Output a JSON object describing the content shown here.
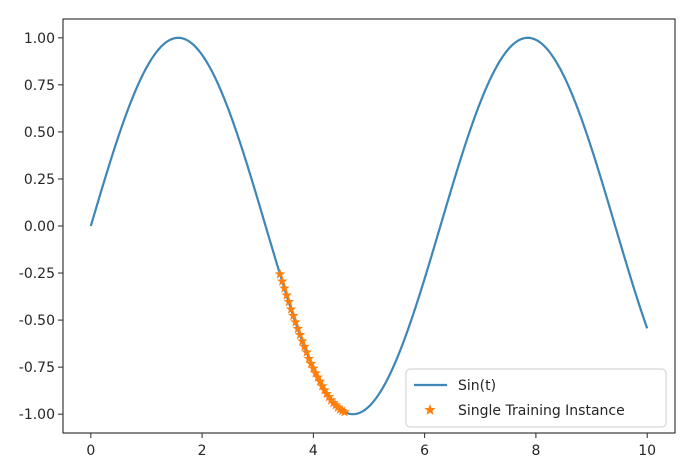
{
  "chart_data": {
    "type": "line",
    "title": "",
    "xlabel": "",
    "ylabel": "",
    "xlim": [
      -0.5,
      10.5
    ],
    "ylim": [
      -1.1,
      1.1
    ],
    "xticks": [
      {
        "value": 0,
        "label": "0"
      },
      {
        "value": 2,
        "label": "2"
      },
      {
        "value": 4,
        "label": "4"
      },
      {
        "value": 6,
        "label": "6"
      },
      {
        "value": 8,
        "label": "8"
      },
      {
        "value": 10,
        "label": "10"
      }
    ],
    "yticks": [
      {
        "value": 1.0,
        "label": "1.00"
      },
      {
        "value": 0.75,
        "label": "0.75"
      },
      {
        "value": 0.5,
        "label": "0.50"
      },
      {
        "value": 0.25,
        "label": "0.25"
      },
      {
        "value": 0.0,
        "label": "0.00"
      },
      {
        "value": -0.25,
        "label": "-0.25"
      },
      {
        "value": -0.5,
        "label": "-0.50"
      },
      {
        "value": -0.75,
        "label": "-0.75"
      },
      {
        "value": -1.0,
        "label": "-1.00"
      }
    ],
    "grid": false,
    "legend_position": "lower-right",
    "series": [
      {
        "name": "Sin(t)",
        "kind": "line",
        "color": "#3d86b5",
        "x_range": [
          0,
          10
        ],
        "function": "sin"
      },
      {
        "name": "Single Training Instance",
        "kind": "marker",
        "marker": "star",
        "color": "#ff7f0e",
        "x": [
          3.4,
          3.44,
          3.48,
          3.52,
          3.56,
          3.6,
          3.64,
          3.68,
          3.72,
          3.76,
          3.8,
          3.84,
          3.88,
          3.92,
          3.96,
          4.0,
          4.04,
          4.08,
          4.12,
          4.16,
          4.2,
          4.24,
          4.28,
          4.32,
          4.36,
          4.4,
          4.44,
          4.48,
          4.52,
          4.56
        ],
        "y": [
          -0.256,
          -0.294,
          -0.331,
          -0.368,
          -0.403,
          -0.443,
          -0.477,
          -0.511,
          -0.546,
          -0.578,
          -0.612,
          -0.641,
          -0.671,
          -0.706,
          -0.732,
          -0.757,
          -0.782,
          -0.804,
          -0.826,
          -0.851,
          -0.872,
          -0.892,
          -0.908,
          -0.926,
          -0.94,
          -0.952,
          -0.964,
          -0.975,
          -0.982,
          -0.989
        ]
      }
    ]
  }
}
